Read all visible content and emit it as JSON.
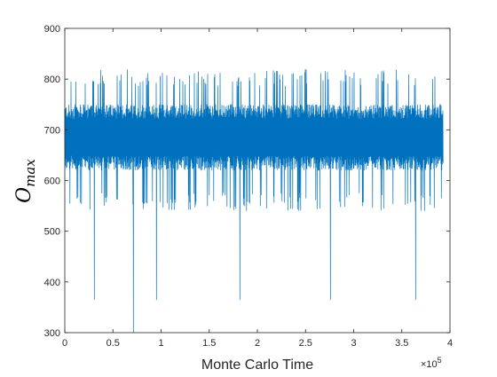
{
  "chart_data": {
    "type": "line",
    "title": "",
    "xlabel": "Monte Carlo Time",
    "ylabel_main": "O",
    "ylabel_sub": "max",
    "x_exponent_base": "×10",
    "x_exponent_power": "5",
    "xlim": [
      0,
      4
    ],
    "ylim": [
      300,
      900
    ],
    "x_ticks": [
      0,
      0.5,
      1,
      1.5,
      2,
      2.5,
      3,
      3.5,
      4
    ],
    "x_tick_labels": [
      "0",
      "0.5",
      "1",
      "1.5",
      "2",
      "2.5",
      "3",
      "3.5",
      "4"
    ],
    "y_ticks": [
      300,
      400,
      500,
      600,
      700,
      800,
      900
    ],
    "y_tick_labels": [
      "300",
      "400",
      "500",
      "600",
      "700",
      "800",
      "900"
    ],
    "grid": false,
    "legend": "none",
    "series": [
      {
        "color": "#0072BD",
        "x_range": [
          0,
          3.93
        ],
        "typical_band": [
          620,
          750
        ],
        "extreme_band": [
          540,
          820
        ],
        "dips": [
          {
            "x": 0.3,
            "y": 365
          },
          {
            "x": 0.71,
            "y": 300
          },
          {
            "x": 0.95,
            "y": 365
          },
          {
            "x": 1.82,
            "y": 365
          },
          {
            "x": 2.76,
            "y": 365
          },
          {
            "x": 3.64,
            "y": 365
          }
        ]
      }
    ]
  }
}
